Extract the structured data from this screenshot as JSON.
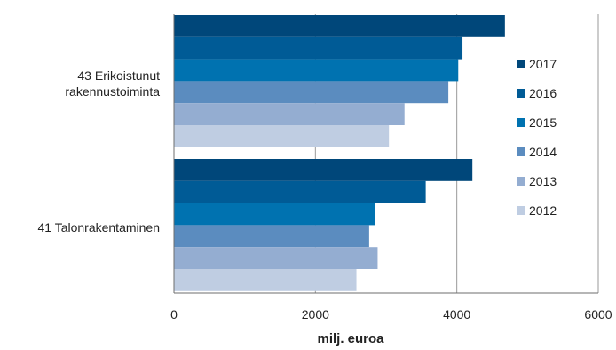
{
  "chart_data": {
    "type": "bar",
    "orientation": "horizontal",
    "categories": [
      "43 Erikoistunut\nrakennustoiminta",
      "41 Talonrakentaminen"
    ],
    "series": [
      {
        "name": "2017",
        "color": "#00477a",
        "values": [
          4680,
          4220
        ]
      },
      {
        "name": "2016",
        "color": "#005b96",
        "values": [
          4080,
          3560
        ]
      },
      {
        "name": "2015",
        "color": "#0072b0",
        "values": [
          4020,
          2840
        ]
      },
      {
        "name": "2014",
        "color": "#5b8cbf",
        "values": [
          3880,
          2760
        ]
      },
      {
        "name": "2013",
        "color": "#94add1",
        "values": [
          3260,
          2880
        ]
      },
      {
        "name": "2012",
        "color": "#bfcde2",
        "values": [
          3040,
          2580
        ]
      }
    ],
    "xlabel": "milj. euroa",
    "xlim": [
      0,
      6000
    ],
    "xticks": [
      0,
      2000,
      4000,
      6000
    ],
    "grid": "vertical",
    "legend_position": "right"
  }
}
